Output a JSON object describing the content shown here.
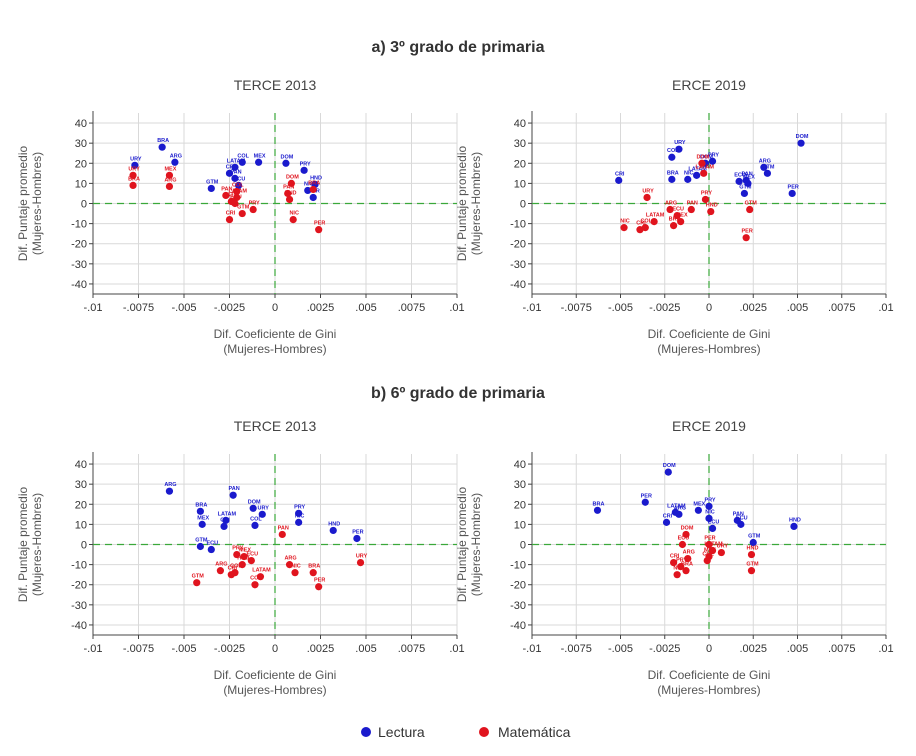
{
  "section_titles": [
    "a) 3º grado de primaria",
    "b) 6º grado de primaria"
  ],
  "colors": {
    "lectura": "#1a1acd",
    "matematica": "#e0141e",
    "refline": "#3aa83a",
    "grid": "#d9d9d9"
  },
  "legend": [
    {
      "label": "Lectura",
      "color": "#1a1acd"
    },
    {
      "label": "Matemática",
      "color": "#e0141e"
    }
  ],
  "chart_data": [
    {
      "type": "scatter",
      "section": "a) 3º grado de primaria",
      "title": "TERCE 2013",
      "xlabel": [
        "Dif. Coeficiente de Gini",
        "(Mujeres-Hombres)"
      ],
      "ylabel": [
        "Dif. Puntaje promedio",
        "(Mujeres-Hombres)"
      ],
      "xlim": [
        -0.01,
        0.01
      ],
      "ylim": [
        -45,
        45
      ],
      "xticks": [
        -0.01,
        -0.0075,
        -0.005,
        -0.0025,
        0,
        0.0025,
        0.005,
        0.0075,
        0.01
      ],
      "xticklabels": [
        "-.01",
        "-.0075",
        "-.005",
        "-.0025",
        "0",
        ".0025",
        ".005",
        ".0075",
        ".01"
      ],
      "yticks": [
        40,
        30,
        20,
        10,
        0,
        -10,
        -20,
        -30,
        -40
      ],
      "grid": true,
      "reflines": {
        "x": 0,
        "y": 0
      },
      "series": [
        {
          "name": "Lectura",
          "points": [
            {
              "label": "URY",
              "x": -0.0077,
              "y": 19
            },
            {
              "label": "BRA",
              "x": -0.0062,
              "y": 28
            },
            {
              "label": "ARG",
              "x": -0.0055,
              "y": 20.5
            },
            {
              "label": "LATAM",
              "x": -0.0022,
              "y": 18
            },
            {
              "label": "COL",
              "x": -0.0018,
              "y": 20.5
            },
            {
              "label": "MEX",
              "x": -0.0009,
              "y": 20.5
            },
            {
              "label": "CRI",
              "x": -0.0025,
              "y": 15
            },
            {
              "label": "PAN",
              "x": -0.0022,
              "y": 12.5
            },
            {
              "label": "GTM",
              "x": -0.0035,
              "y": 7.5
            },
            {
              "label": "ECU",
              "x": -0.002,
              "y": 9
            },
            {
              "label": "DOM",
              "x": 0.0006,
              "y": 20
            },
            {
              "label": "PRY",
              "x": 0.0016,
              "y": 16.5
            },
            {
              "label": "NIC",
              "x": 0.0018,
              "y": 6.5
            },
            {
              "label": "HND",
              "x": 0.0022,
              "y": 9.5
            },
            {
              "label": "PER",
              "x": 0.0021,
              "y": 3
            }
          ]
        },
        {
          "name": "Matemática",
          "points": [
            {
              "label": "URY",
              "x": -0.0078,
              "y": 14
            },
            {
              "label": "BRA",
              "x": -0.0078,
              "y": 9
            },
            {
              "label": "MEX",
              "x": -0.0058,
              "y": 14
            },
            {
              "label": "ARG",
              "x": -0.0058,
              "y": 8.5
            },
            {
              "label": "COL",
              "x": -0.0021,
              "y": 6
            },
            {
              "label": "PAN",
              "x": -0.0027,
              "y": 4
            },
            {
              "label": "LATAM",
              "x": -0.0021,
              "y": 3
            },
            {
              "label": "GTM",
              "x": -0.0024,
              "y": 1
            },
            {
              "label": "ECU",
              "x": -0.0022,
              "y": 0
            },
            {
              "label": "CRI",
              "x": -0.0025,
              "y": -8
            },
            {
              "label": "GTM",
              "x": -0.0018,
              "y": -5
            },
            {
              "label": "PRY",
              "x": -0.0012,
              "y": -3
            },
            {
              "label": "PAN",
              "x": 0.0007,
              "y": 5
            },
            {
              "label": "DOM",
              "x": 0.0009,
              "y": 10
            },
            {
              "label": "HND",
              "x": 0.0008,
              "y": 2
            },
            {
              "label": "NIC",
              "x": 0.001,
              "y": -8
            },
            {
              "label": "PER",
              "x": 0.0024,
              "y": -13
            },
            {
              "label": "BRA",
              "x": 0.0021,
              "y": 7
            }
          ]
        }
      ]
    },
    {
      "type": "scatter",
      "section": "a) 3º grado de primaria",
      "title": "ERCE 2019",
      "xlabel": [
        "Dif. Coeficiente de Gini",
        "(Mujeres-Hombres)"
      ],
      "ylabel": [
        "Dif. Puntaje promedio",
        "(Mujeres-Hombres)"
      ],
      "xlim": [
        -0.01,
        0.01
      ],
      "ylim": [
        -45,
        45
      ],
      "xticks": [
        -0.01,
        -0.0075,
        -0.005,
        -0.0025,
        0,
        0.0025,
        0.005,
        0.0075,
        0.01
      ],
      "xticklabels": [
        "-.01",
        "-.0075",
        "-.005",
        "-.0025",
        "0",
        ".0025",
        ".005",
        ".0075",
        ".01"
      ],
      "yticks": [
        40,
        30,
        20,
        10,
        0,
        -10,
        -20,
        -30,
        -40
      ],
      "grid": true,
      "reflines": {
        "x": 0,
        "y": 0
      },
      "series": [
        {
          "name": "Lectura",
          "points": [
            {
              "label": "CRI",
              "x": -0.0051,
              "y": 11.5
            },
            {
              "label": "URY",
              "x": -0.0017,
              "y": 27
            },
            {
              "label": "COL",
              "x": -0.0021,
              "y": 23
            },
            {
              "label": "BRA",
              "x": -0.0021,
              "y": 12
            },
            {
              "label": "NIC",
              "x": -0.0012,
              "y": 12
            },
            {
              "label": "LATAM",
              "x": -0.0007,
              "y": 14
            },
            {
              "label": "DOM",
              "x": -0.0002,
              "y": 20
            },
            {
              "label": "ECU",
              "x": 0.0017,
              "y": 11
            },
            {
              "label": "PAN",
              "x": 0.0021,
              "y": 11.5
            },
            {
              "label": "GTM",
              "x": 0.002,
              "y": 5
            },
            {
              "label": "MEX",
              "x": 0.0022,
              "y": 10
            },
            {
              "label": "ARG",
              "x": 0.0031,
              "y": 18
            },
            {
              "label": "GTM",
              "x": 0.0033,
              "y": 15
            },
            {
              "label": "PER",
              "x": 0.0047,
              "y": 5
            },
            {
              "label": "DOM",
              "x": 0.0052,
              "y": 30
            },
            {
              "label": "PRY",
              "x": 0.0002,
              "y": 21
            }
          ]
        },
        {
          "name": "Matemática",
          "points": [
            {
              "label": "DOM",
              "x": -0.0004,
              "y": 20
            },
            {
              "label": "LATAM",
              "x": -0.0003,
              "y": 15
            },
            {
              "label": "URY",
              "x": -0.0035,
              "y": 3
            },
            {
              "label": "PRY",
              "x": -0.0002,
              "y": 2
            },
            {
              "label": "ARG",
              "x": -0.0022,
              "y": -3
            },
            {
              "label": "NIC",
              "x": -0.0048,
              "y": -12
            },
            {
              "label": "LATAM",
              "x": -0.0031,
              "y": -9
            },
            {
              "label": "COL",
              "x": -0.0036,
              "y": -12
            },
            {
              "label": "CRI",
              "x": -0.0039,
              "y": -13
            },
            {
              "label": "ECU",
              "x": -0.0018,
              "y": -6
            },
            {
              "label": "PAN",
              "x": -0.001,
              "y": -3
            },
            {
              "label": "MEX",
              "x": -0.0016,
              "y": -9
            },
            {
              "label": "BRA",
              "x": -0.002,
              "y": -11
            },
            {
              "label": "HND",
              "x": 0.0001,
              "y": -4
            },
            {
              "label": "GTM",
              "x": 0.0023,
              "y": -3
            },
            {
              "label": "PER",
              "x": 0.0021,
              "y": -17
            }
          ]
        }
      ]
    },
    {
      "type": "scatter",
      "section": "b) 6º grado de primaria",
      "title": "TERCE 2013",
      "xlabel": [
        "Dif. Coeficiente de Gini",
        "(Mujeres-Hombres)"
      ],
      "ylabel": [
        "Dif. Puntaje promedio",
        "(Mujeres-Hombres)"
      ],
      "xlim": [
        -0.01,
        0.01
      ],
      "ylim": [
        -45,
        45
      ],
      "xticks": [
        -0.01,
        -0.0075,
        -0.005,
        -0.0025,
        0,
        0.0025,
        0.005,
        0.0075,
        0.01
      ],
      "xticklabels": [
        "-.01",
        "-.0075",
        "-.005",
        "-.0025",
        "0",
        ".0025",
        ".005",
        ".0075",
        ".01"
      ],
      "yticks": [
        40,
        30,
        20,
        10,
        0,
        -10,
        -20,
        -30,
        -40
      ],
      "grid": true,
      "reflines": {
        "x": 0,
        "y": 0
      },
      "series": [
        {
          "name": "Lectura",
          "points": [
            {
              "label": "ARG",
              "x": -0.0058,
              "y": 26.5
            },
            {
              "label": "PAN",
              "x": -0.0023,
              "y": 24.5
            },
            {
              "label": "BRA",
              "x": -0.0041,
              "y": 16.5
            },
            {
              "label": "MEX",
              "x": -0.004,
              "y": 10
            },
            {
              "label": "LATAM",
              "x": -0.0027,
              "y": 12
            },
            {
              "label": "CRI",
              "x": -0.0028,
              "y": 9
            },
            {
              "label": "DOM",
              "x": -0.0012,
              "y": 18
            },
            {
              "label": "URY",
              "x": -0.0007,
              "y": 15
            },
            {
              "label": "COL",
              "x": -0.0011,
              "y": 9.5
            },
            {
              "label": "GTM",
              "x": -0.0041,
              "y": -1
            },
            {
              "label": "ECU",
              "x": -0.0035,
              "y": -2.5
            },
            {
              "label": "PRY",
              "x": 0.0013,
              "y": 15.5
            },
            {
              "label": "NIC",
              "x": 0.0013,
              "y": 11
            },
            {
              "label": "HND",
              "x": 0.0032,
              "y": 7
            },
            {
              "label": "PER",
              "x": 0.0045,
              "y": 3
            }
          ]
        },
        {
          "name": "Matemática",
          "points": [
            {
              "label": "PRY",
              "x": -0.0021,
              "y": -5
            },
            {
              "label": "MEX",
              "x": -0.0017,
              "y": -6
            },
            {
              "label": "ECU",
              "x": -0.0013,
              "y": -8
            },
            {
              "label": "GTM",
              "x": -0.0043,
              "y": -19
            },
            {
              "label": "ARG",
              "x": -0.003,
              "y": -13
            },
            {
              "label": "COL",
              "x": -0.0022,
              "y": -14
            },
            {
              "label": "HND",
              "x": -0.0018,
              "y": -10
            },
            {
              "label": "CRI",
              "x": -0.0024,
              "y": -15
            },
            {
              "label": "LATAM",
              "x": -0.0008,
              "y": -16
            },
            {
              "label": "COL",
              "x": -0.0011,
              "y": -20
            },
            {
              "label": "PAN",
              "x": 0.0004,
              "y": 5
            },
            {
              "label": "ARG",
              "x": 0.0008,
              "y": -10
            },
            {
              "label": "NIC",
              "x": 0.0011,
              "y": -14
            },
            {
              "label": "BRA",
              "x": 0.0021,
              "y": -14
            },
            {
              "label": "PER",
              "x": 0.0024,
              "y": -21
            },
            {
              "label": "URY",
              "x": 0.0047,
              "y": -9
            }
          ]
        }
      ]
    },
    {
      "type": "scatter",
      "section": "b) 6º grado de primaria",
      "title": "ERCE 2019",
      "xlabel": [
        "Dif. Coeficiente de Gini",
        "(Mujeres-Hombres)"
      ],
      "ylabel": [
        "Dif. Puntaje promedio",
        "(Mujeres-Hombres)"
      ],
      "xlim": [
        -0.01,
        0.01
      ],
      "ylim": [
        -45,
        45
      ],
      "xticks": [
        -0.01,
        -0.0075,
        -0.005,
        -0.0025,
        0,
        0.0025,
        0.005,
        0.0075,
        0.01
      ],
      "xticklabels": [
        "-.01",
        "-.0075",
        "-.005",
        "-.0025",
        "0",
        ".0025",
        ".005",
        ".0075",
        ".01"
      ],
      "yticks": [
        40,
        30,
        20,
        10,
        0,
        -10,
        -20,
        -30,
        -40
      ],
      "grid": true,
      "reflines": {
        "x": 0,
        "y": 0
      },
      "series": [
        {
          "name": "Lectura",
          "points": [
            {
              "label": "BRA",
              "x": -0.0063,
              "y": 17
            },
            {
              "label": "PER",
              "x": -0.0036,
              "y": 21
            },
            {
              "label": "DOM",
              "x": -0.0023,
              "y": 36
            },
            {
              "label": "LATAM",
              "x": -0.0019,
              "y": 16
            },
            {
              "label": "CRI",
              "x": -0.0024,
              "y": 11
            },
            {
              "label": "ARG",
              "x": -0.0017,
              "y": 15
            },
            {
              "label": "MEX",
              "x": -0.0006,
              "y": 17
            },
            {
              "label": "PRY",
              "x": 0.0,
              "y": 19
            },
            {
              "label": "NIC",
              "x": 0.0,
              "y": 13
            },
            {
              "label": "ECU",
              "x": 0.0002,
              "y": 8
            },
            {
              "label": "PAN",
              "x": 0.0016,
              "y": 12
            },
            {
              "label": "ECU",
              "x": 0.0018,
              "y": 10
            },
            {
              "label": "GTM",
              "x": 0.0025,
              "y": 1
            },
            {
              "label": "HND",
              "x": 0.0048,
              "y": 9
            }
          ]
        },
        {
          "name": "Matemática",
          "points": [
            {
              "label": "DOM",
              "x": -0.0013,
              "y": 5
            },
            {
              "label": "ECU",
              "x": -0.0015,
              "y": 0
            },
            {
              "label": "PER",
              "x": 0.0,
              "y": 0
            },
            {
              "label": "LATAM",
              "x": 0.0002,
              "y": -3
            },
            {
              "label": "ARG",
              "x": -0.0012,
              "y": -7
            },
            {
              "label": "CRI",
              "x": -0.002,
              "y": -9
            },
            {
              "label": "PRY",
              "x": -0.0016,
              "y": -11
            },
            {
              "label": "BRA",
              "x": -0.0013,
              "y": -13
            },
            {
              "label": "NIC",
              "x": -0.0018,
              "y": -15
            },
            {
              "label": "COL",
              "x": -0.0001,
              "y": -8
            },
            {
              "label": "URY",
              "x": 0.0007,
              "y": -4
            },
            {
              "label": "HND",
              "x": 0.0024,
              "y": -5
            },
            {
              "label": "GTM",
              "x": 0.0024,
              "y": -13
            },
            {
              "label": "MEX",
              "x": 0.0,
              "y": -6
            }
          ]
        }
      ]
    }
  ]
}
